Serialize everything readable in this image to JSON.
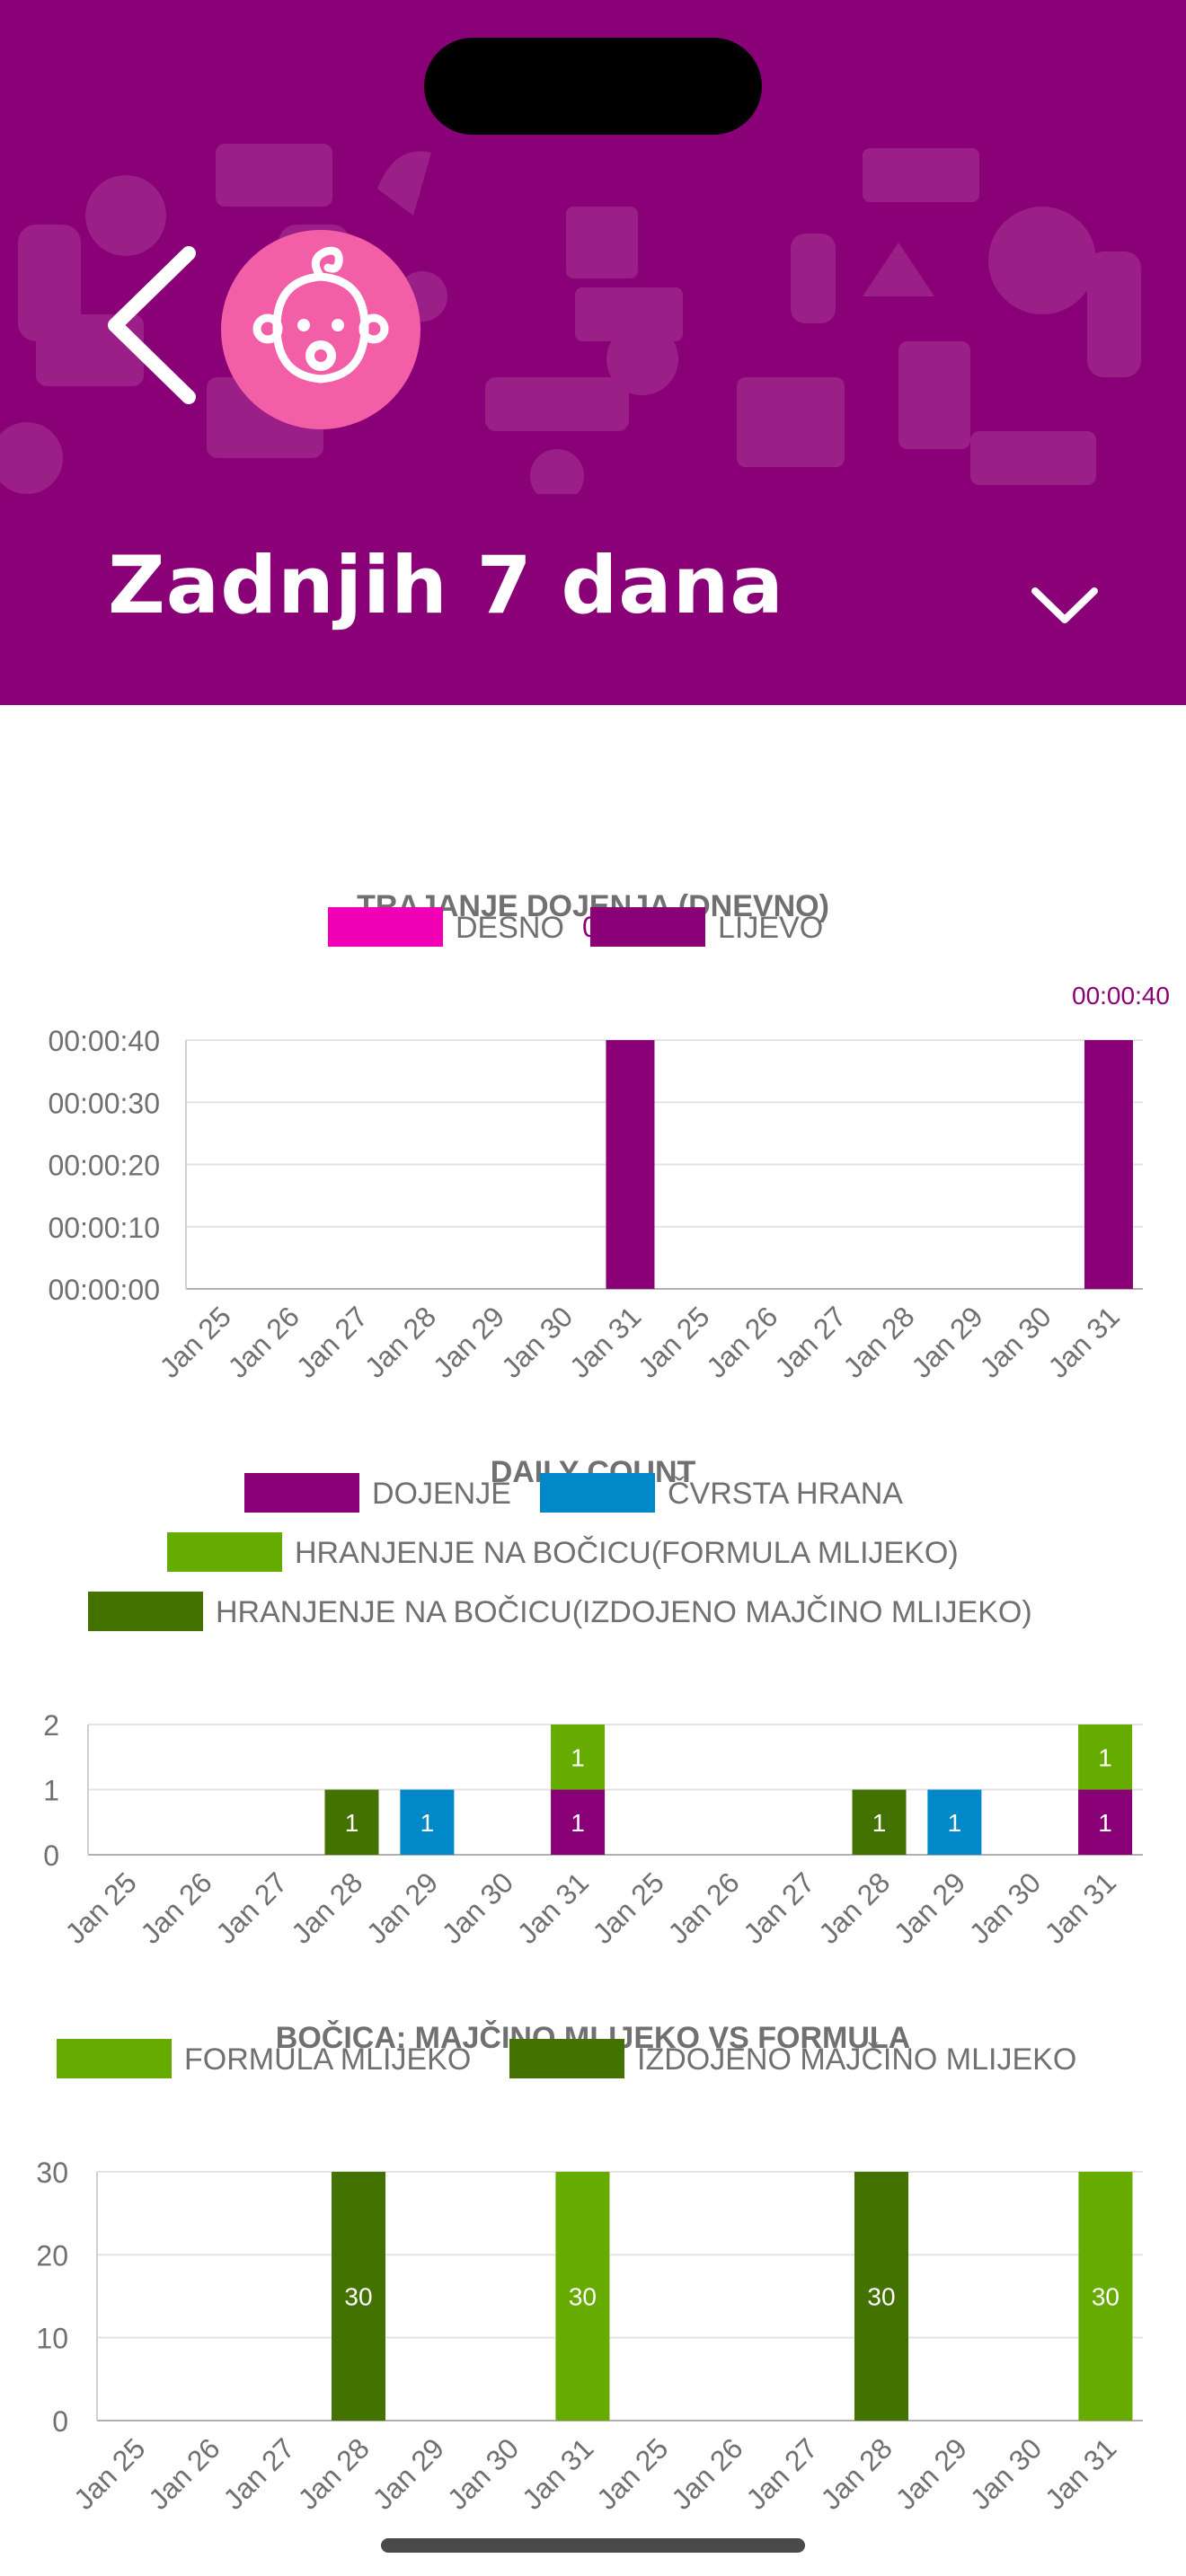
{
  "header": {
    "back_icon": "chevron-left-icon",
    "avatar_icon": "baby-face-icon",
    "period_label": "Zadnjih 7 dana",
    "dropdown_icon": "chevron-down-icon",
    "background_color": "#8a0077",
    "avatar_color": "#f25fa6"
  },
  "charts": {
    "breastfeeding": {
      "title": "TRAJANJE DOJENJA (DNEVNO)",
      "partial_label": "0",
      "top_label": "00:00:40"
    },
    "daily_count": {
      "title": "DAILY COUNT"
    },
    "bottle": {
      "title": "BOČICA: MAJČINO MLIJEKO VS FORMULA"
    }
  },
  "chart_data": [
    {
      "type": "bar",
      "title": "TRAJANJE DOJENJA (DNEVNO)",
      "categories": [
        "Jan 25",
        "Jan 26",
        "Jan 27",
        "Jan 28",
        "Jan 29",
        "Jan 30",
        "Jan 31",
        "Jan 25",
        "Jan 26",
        "Jan 27",
        "Jan 28",
        "Jan 29",
        "Jan 30",
        "Jan 31"
      ],
      "series": [
        {
          "name": "DESNO",
          "color": "#f000b4",
          "values": [
            0,
            0,
            0,
            0,
            0,
            0,
            0,
            0,
            0,
            0,
            0,
            0,
            0,
            0
          ]
        },
        {
          "name": "LIJEVO",
          "color": "#8a0077",
          "values": [
            0,
            0,
            0,
            0,
            0,
            0,
            40,
            0,
            0,
            0,
            0,
            0,
            0,
            40
          ]
        }
      ],
      "y_ticks": [
        "00:00:00",
        "00:00:10",
        "00:00:20",
        "00:00:30",
        "00:00:40"
      ],
      "ylim": [
        0,
        40
      ],
      "legend": "top",
      "grid": true
    },
    {
      "type": "bar",
      "stacked": true,
      "title": "DAILY COUNT",
      "categories": [
        "Jan 25",
        "Jan 26",
        "Jan 27",
        "Jan 28",
        "Jan 29",
        "Jan 30",
        "Jan 31",
        "Jan 25",
        "Jan 26",
        "Jan 27",
        "Jan 28",
        "Jan 29",
        "Jan 30",
        "Jan 31"
      ],
      "series": [
        {
          "name": "DOJENJE",
          "color": "#8a0077",
          "values": [
            0,
            0,
            0,
            0,
            0,
            0,
            1,
            0,
            0,
            0,
            0,
            0,
            0,
            1
          ]
        },
        {
          "name": "ČVRSTA HRANA",
          "color": "#0088c8",
          "values": [
            0,
            0,
            0,
            0,
            1,
            0,
            0,
            0,
            0,
            0,
            0,
            1,
            0,
            0
          ]
        },
        {
          "name": "HRANJENJE NA BOČICU(FORMULA MLIJEKO)",
          "color": "#66ab00",
          "values": [
            0,
            0,
            0,
            0,
            0,
            0,
            1,
            0,
            0,
            0,
            0,
            0,
            0,
            1
          ]
        },
        {
          "name": "HRANJENJE NA BOČICU(IZDOJENO MAJČINO MLIJEKO)",
          "color": "#447200",
          "values": [
            0,
            0,
            0,
            1,
            0,
            0,
            0,
            0,
            0,
            0,
            1,
            0,
            0,
            0
          ]
        }
      ],
      "y_ticks": [
        "0",
        "1",
        "2"
      ],
      "ylim": [
        0,
        2
      ],
      "legend": "top",
      "grid": true
    },
    {
      "type": "bar",
      "title": "BOČICA: MAJČINO MLIJEKO VS FORMULA",
      "categories": [
        "Jan 25",
        "Jan 26",
        "Jan 27",
        "Jan 28",
        "Jan 29",
        "Jan 30",
        "Jan 31",
        "Jan 25",
        "Jan 26",
        "Jan 27",
        "Jan 28",
        "Jan 29",
        "Jan 30",
        "Jan 31"
      ],
      "series": [
        {
          "name": "FORMULA MLIJEKO",
          "color": "#66ab00",
          "values": [
            0,
            0,
            0,
            0,
            0,
            0,
            30,
            0,
            0,
            0,
            0,
            0,
            0,
            30
          ]
        },
        {
          "name": "IZDOJENO MAJČINO MLIJEKO",
          "color": "#447200",
          "values": [
            0,
            0,
            0,
            30,
            0,
            0,
            0,
            0,
            0,
            0,
            30,
            0,
            0,
            0
          ]
        }
      ],
      "y_ticks": [
        "0",
        "10",
        "20",
        "30"
      ],
      "ylim": [
        0,
        30
      ],
      "legend": "top",
      "grid": true
    }
  ]
}
